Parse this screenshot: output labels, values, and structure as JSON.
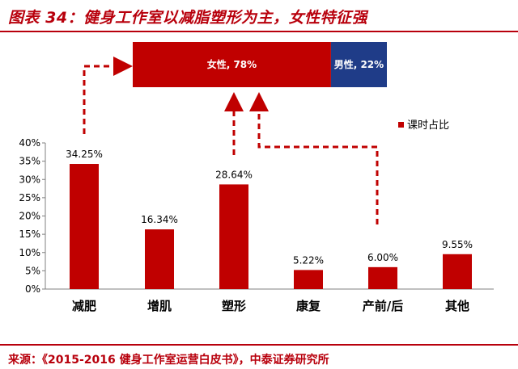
{
  "header": {
    "title": "图表 34：健身工作室以减脂塑形为主，女性特征强"
  },
  "footer": {
    "source": "来源：《2015-2016 健身工作室运营白皮书》，中泰证券研究所"
  },
  "colors": {
    "bar": "#c00000",
    "female": "#c00000",
    "male": "#1f3c88",
    "accent": "#b8000c"
  },
  "chart_data": [
    {
      "type": "bar",
      "categories": [
        "减肥",
        "增肌",
        "塑形",
        "康复",
        "产前/后",
        "其他"
      ],
      "values": [
        34.25,
        16.34,
        28.64,
        5.22,
        6.0,
        9.55
      ],
      "data_labels": [
        "34.25%",
        "16.34%",
        "28.64%",
        "5.22%",
        "6.00%",
        "9.55%"
      ],
      "series": [
        {
          "name": "课时占比",
          "values": [
            34.25,
            16.34,
            28.64,
            5.22,
            6.0,
            9.55
          ]
        }
      ],
      "ylim": [
        0,
        40
      ],
      "yticks": [
        "0%",
        "5%",
        "10%",
        "15%",
        "20%",
        "25%",
        "30%",
        "35%",
        "40%"
      ],
      "grid": false,
      "legend": "right"
    },
    {
      "type": "bar",
      "orientation": "horizontal-stacked",
      "segments": [
        {
          "label": "女性, 78%",
          "value": 78,
          "color": "#c00000"
        },
        {
          "label": "男性, 22%",
          "value": 22,
          "color": "#1f3c88"
        }
      ]
    }
  ]
}
